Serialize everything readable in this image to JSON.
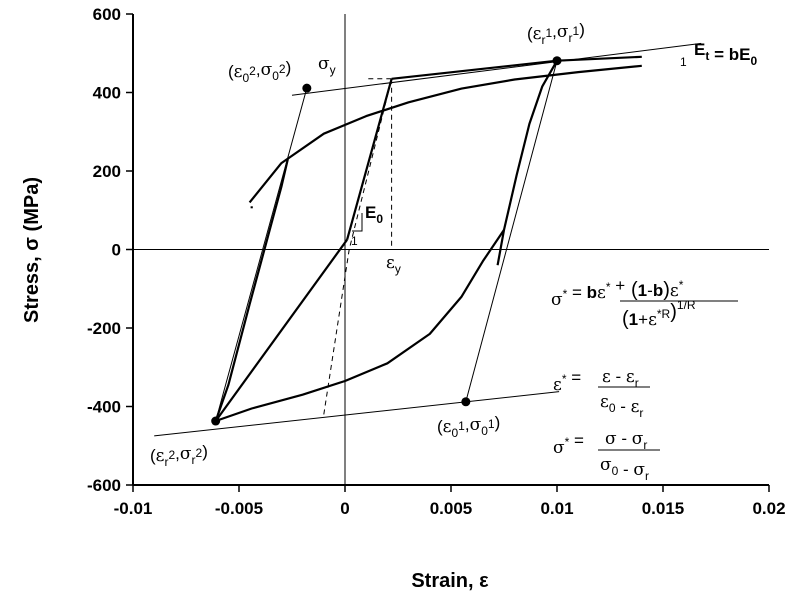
{
  "chart_data": {
    "type": "line",
    "xlabel": "Strain, ε",
    "ylabel": "Stress, σ  (MPa)",
    "xlim": [
      -0.01,
      0.02
    ],
    "ylim": [
      -600,
      600
    ],
    "x_ticks": [
      -0.01,
      -0.005,
      0,
      0.005,
      0.01,
      0.015,
      0.02
    ],
    "x_tick_labels": [
      "-0.01",
      "-0.005",
      "0",
      "0.005",
      "0.01",
      "0.015",
      "0.02"
    ],
    "y_ticks": [
      -600,
      -400,
      -200,
      0,
      200,
      400,
      600
    ],
    "y_tick_labels": [
      "-600",
      "-400",
      "-200",
      "0",
      "200",
      "400",
      "600"
    ],
    "grid": false,
    "zero_lines": true,
    "lines": [
      {
        "style": "solid-thin",
        "points": [
          [
            -0.0025,
            393
          ],
          [
            0.0168,
            525
          ]
        ]
      },
      {
        "style": "solid-thin",
        "points": [
          [
            -0.009,
            -475
          ],
          [
            0.0101,
            -362
          ]
        ]
      },
      {
        "style": "solid-thin",
        "points": [
          [
            -0.0061,
            -437
          ],
          [
            -0.0018,
            411
          ]
        ]
      },
      {
        "style": "solid-thin",
        "points": [
          [
            0.0057,
            -388
          ],
          [
            0.01,
            481
          ]
        ]
      },
      {
        "style": "solid-thick",
        "points": [
          [
            0.0001,
            25
          ],
          [
            0.0022,
            435
          ]
        ]
      },
      {
        "style": "solid-thick",
        "points": [
          [
            0.0022,
            435
          ],
          [
            0.01,
            481
          ]
        ]
      },
      {
        "style": "solid-thick",
        "points": [
          [
            0.01,
            481
          ],
          [
            0.014,
            491
          ]
        ]
      },
      {
        "style": "solid-thick",
        "points": [
          [
            -0.0061,
            -437
          ],
          [
            -0.0044,
            -405
          ],
          [
            -0.002,
            -370
          ],
          [
            0,
            -335
          ],
          [
            0.002,
            -290
          ],
          [
            0.004,
            -215
          ],
          [
            0.0055,
            -120
          ],
          [
            0.0065,
            -30
          ],
          [
            0.0075,
            50
          ]
        ]
      },
      {
        "style": "solid-thick",
        "points": [
          [
            -0.0045,
            120
          ],
          [
            -0.003,
            220
          ],
          [
            -0.001,
            295
          ],
          [
            0.001,
            340
          ],
          [
            0.003,
            375
          ],
          [
            0.0055,
            410
          ],
          [
            0.008,
            433
          ],
          [
            0.011,
            452
          ],
          [
            0.014,
            468
          ]
        ]
      },
      {
        "style": "solid-thick",
        "points": [
          [
            -0.0061,
            -437
          ],
          [
            -0.0055,
            -345
          ],
          [
            -0.0045,
            -140
          ],
          [
            -0.004,
            -40
          ],
          [
            -0.0035,
            60
          ],
          [
            -0.003,
            160
          ],
          [
            -0.0027,
            230
          ]
        ]
      },
      {
        "style": "solid-thick",
        "points": [
          [
            -0.0044,
            105
          ],
          [
            -0.0044,
            110
          ]
        ]
      },
      {
        "style": "solid-thick",
        "points": [
          [
            0.0072,
            -40
          ],
          [
            0.0075,
            50
          ],
          [
            0.0081,
            190
          ],
          [
            0.0087,
            320
          ],
          [
            0.0093,
            415
          ],
          [
            0.01,
            481
          ]
        ]
      },
      {
        "style": "solid-thick",
        "points": [
          [
            -0.0061,
            -437
          ],
          [
            0.0001,
            25
          ]
        ]
      },
      {
        "style": "dashed",
        "points": [
          [
            -0.001,
            -420
          ],
          [
            0.0002,
            0
          ],
          [
            0.0022,
            435
          ]
        ]
      },
      {
        "style": "dashed",
        "points": [
          [
            0.0011,
            435
          ],
          [
            0.0022,
            435
          ]
        ]
      },
      {
        "style": "dashed",
        "points": [
          [
            0.0022,
            435
          ],
          [
            0.0022,
            0
          ]
        ]
      }
    ],
    "points": [
      {
        "x": -0.0018,
        "y": 411
      },
      {
        "x": 0.01,
        "y": 481
      },
      {
        "x": 0.0057,
        "y": -388
      },
      {
        "x": -0.0061,
        "y": -437
      }
    ],
    "annotations": {
      "epsilon": "ε",
      "sigma": "σ",
      "star": "*",
      "sub_0": "0",
      "sub_r": "r",
      "sub_y": "y",
      "sub_t": "t",
      "sup_1": "1",
      "sup_2": "2",
      "one": "1",
      "comma": ",",
      "open": "(",
      "close": ")",
      "E": "E",
      "eq_b": "= bE",
      "bE": "b",
      "plus": "+",
      "minus": "-",
      "one_minus_b_open": "(",
      "one_minus_b_one": "1",
      "one_minus_b_minus": "-",
      "one_minus_b_b": "b",
      "one_minus_b_close": ")",
      "one_plus": "1",
      "R": "R",
      "inv_R": "1/R",
      "equals": "="
    }
  }
}
